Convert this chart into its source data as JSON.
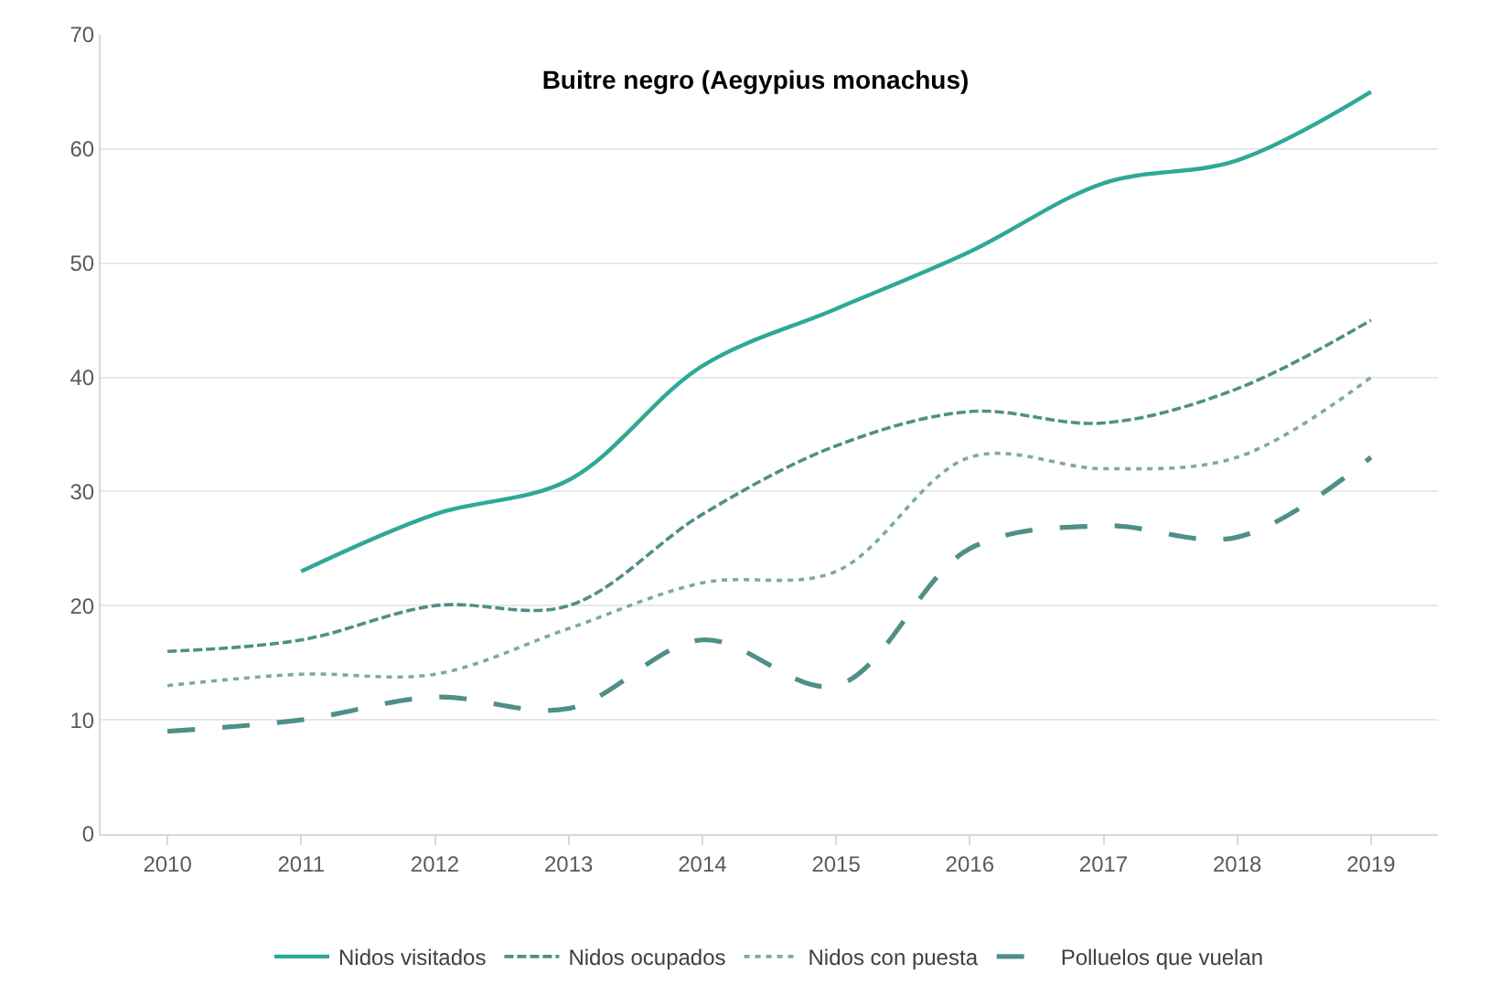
{
  "chart_data": {
    "type": "line",
    "title": "Buitre negro (Aegypius monachus)",
    "categories": [
      "2010",
      "2011",
      "2012",
      "2013",
      "2014",
      "2015",
      "2016",
      "2017",
      "2018",
      "2019"
    ],
    "series": [
      {
        "name": "Nidos visitados",
        "color": "#2fa898",
        "line_style": "solid",
        "values": [
          null,
          23,
          28,
          31,
          41,
          46,
          51,
          57,
          59,
          65
        ]
      },
      {
        "name": "Nidos ocupados",
        "color": "#4f8f88",
        "line_style": "dashed",
        "values": [
          16,
          17,
          20,
          20,
          28,
          34,
          37,
          36,
          39,
          45
        ]
      },
      {
        "name": "Nidos con puesta",
        "color": "#7fa8a2",
        "line_style": "dotted",
        "values": [
          13,
          14,
          14,
          18,
          22,
          23,
          33,
          32,
          33,
          40
        ]
      },
      {
        "name": "Polluelos que vuelan",
        "color": "#4f8f88",
        "line_style": "dashed",
        "values": [
          9,
          10,
          12,
          11,
          17,
          13,
          25,
          27,
          26,
          33
        ]
      }
    ],
    "ylim": [
      0,
      70
    ],
    "yticks": [
      0,
      10,
      20,
      30,
      40,
      50,
      60,
      70
    ],
    "grid": "y",
    "legend": "bottom",
    "marker": "none"
  }
}
